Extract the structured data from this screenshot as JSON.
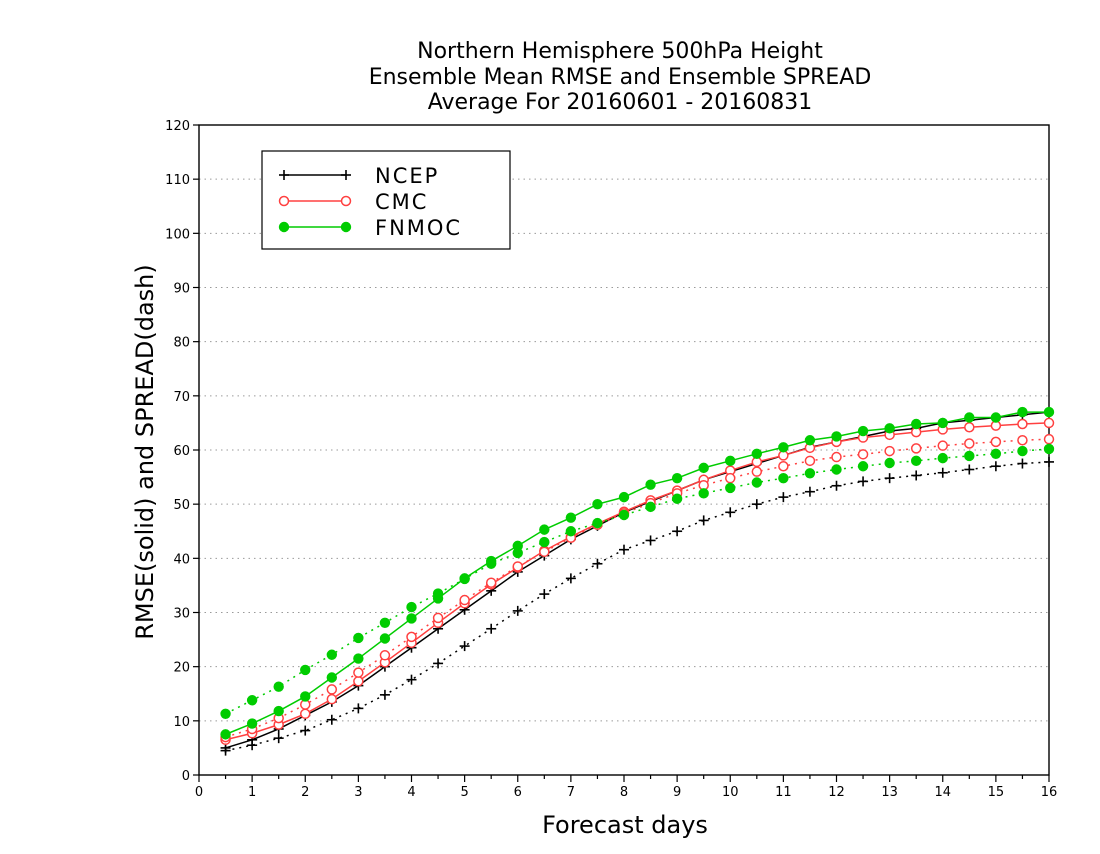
{
  "chart_data": {
    "type": "line",
    "title": [
      "Northern Hemisphere 500hPa Height",
      "Ensemble Mean RMSE and Ensemble SPREAD",
      "Average For 20160601 - 20160831"
    ],
    "xlabel": "Forecast days",
    "ylabel": "RMSE(solid) and SPREAD(dash)",
    "xlim": [
      0,
      16
    ],
    "ylim": [
      0,
      120
    ],
    "xticks": [
      "0",
      "1",
      "2",
      "3",
      "4",
      "5",
      "6",
      "7",
      "8",
      "9",
      "10",
      "11",
      "12",
      "13",
      "14",
      "15",
      "16"
    ],
    "yticks": [
      "0",
      "10",
      "20",
      "30",
      "40",
      "50",
      "60",
      "70",
      "80",
      "90",
      "100",
      "110",
      "120"
    ],
    "grid": true,
    "legend_position": "top-left",
    "x": [
      0.5,
      1,
      1.5,
      2,
      2.5,
      3,
      3.5,
      4,
      4.5,
      5,
      5.5,
      6,
      6.5,
      7,
      7.5,
      8,
      8.5,
      9,
      9.5,
      10,
      10.5,
      11,
      11.5,
      12,
      12.5,
      13,
      13.5,
      14,
      14.5,
      15,
      15.5,
      16
    ],
    "series": [
      {
        "name": "NCEP",
        "kind": "rmse",
        "style": "solid",
        "marker": "plus",
        "color": "#000000",
        "values": [
          5.0,
          6.5,
          8.5,
          11.0,
          13.5,
          16.5,
          20.0,
          23.5,
          27.0,
          30.5,
          34.0,
          37.5,
          40.5,
          43.5,
          46.0,
          48.5,
          50.5,
          52.5,
          54.5,
          56.0,
          57.5,
          59.0,
          60.5,
          61.5,
          62.5,
          63.5,
          64.0,
          65.0,
          65.5,
          66.0,
          66.5,
          67.0
        ]
      },
      {
        "name": "NCEP",
        "kind": "spread",
        "style": "dash",
        "marker": "plus",
        "color": "#000000",
        "values": [
          4.5,
          5.5,
          6.8,
          8.2,
          10.2,
          12.3,
          14.8,
          17.6,
          20.6,
          23.8,
          27.0,
          30.3,
          33.4,
          36.3,
          39.0,
          41.6,
          43.3,
          45.0,
          47.0,
          48.5,
          50.0,
          51.3,
          52.3,
          53.4,
          54.2,
          54.8,
          55.3,
          55.8,
          56.4,
          57.0,
          57.5,
          57.8
        ]
      },
      {
        "name": "CMC",
        "kind": "rmse",
        "style": "solid",
        "marker": "open-circle",
        "color": "#ff4040",
        "values": [
          6.5,
          7.7,
          9.3,
          11.3,
          14.0,
          17.3,
          20.8,
          24.4,
          28.1,
          31.7,
          35.2,
          38.3,
          41.4,
          44.0,
          46.4,
          48.6,
          50.7,
          52.5,
          54.5,
          56.2,
          57.8,
          59.0,
          60.4,
          61.5,
          62.3,
          62.8,
          63.3,
          63.8,
          64.2,
          64.5,
          64.8,
          65.0
        ]
      },
      {
        "name": "CMC",
        "kind": "spread",
        "style": "dash",
        "marker": "open-circle",
        "color": "#ff4040",
        "values": [
          7.0,
          8.5,
          10.5,
          13.0,
          15.8,
          18.9,
          22.1,
          25.5,
          29.0,
          32.3,
          35.5,
          38.5,
          41.2,
          43.8,
          46.2,
          48.3,
          50.2,
          52.0,
          53.5,
          54.8,
          56.0,
          57.0,
          58.0,
          58.7,
          59.2,
          59.8,
          60.3,
          60.8,
          61.2,
          61.5,
          61.8,
          62.0
        ]
      },
      {
        "name": "FNMOC",
        "kind": "rmse",
        "style": "solid",
        "marker": "filled-circle",
        "color": "#00cc00",
        "values": [
          7.5,
          9.5,
          11.8,
          14.5,
          18.0,
          21.5,
          25.2,
          28.9,
          32.6,
          36.3,
          39.5,
          42.3,
          45.3,
          47.5,
          50.0,
          51.3,
          53.6,
          54.8,
          56.7,
          58.0,
          59.3,
          60.5,
          61.8,
          62.5,
          63.5,
          64.0,
          64.8,
          65.0,
          66.0,
          66.0,
          67.0,
          67.0
        ]
      },
      {
        "name": "FNMOC",
        "kind": "spread",
        "style": "dash",
        "marker": "filled-circle",
        "color": "#00cc00",
        "values": [
          11.3,
          13.8,
          16.3,
          19.4,
          22.2,
          25.3,
          28.1,
          31.0,
          33.5,
          36.2,
          39.0,
          41.0,
          43.0,
          45.0,
          46.5,
          48.0,
          49.5,
          51.0,
          52.0,
          53.0,
          54.0,
          54.8,
          55.7,
          56.4,
          57.0,
          57.6,
          58.0,
          58.5,
          58.9,
          59.3,
          59.8,
          60.2
        ]
      }
    ],
    "legend": [
      {
        "label": "NCEP",
        "marker": "plus",
        "color": "#000000"
      },
      {
        "label": "CMC",
        "marker": "open-circle",
        "color": "#ff4040"
      },
      {
        "label": "FNMOC",
        "marker": "filled-circle",
        "color": "#00cc00"
      }
    ]
  }
}
